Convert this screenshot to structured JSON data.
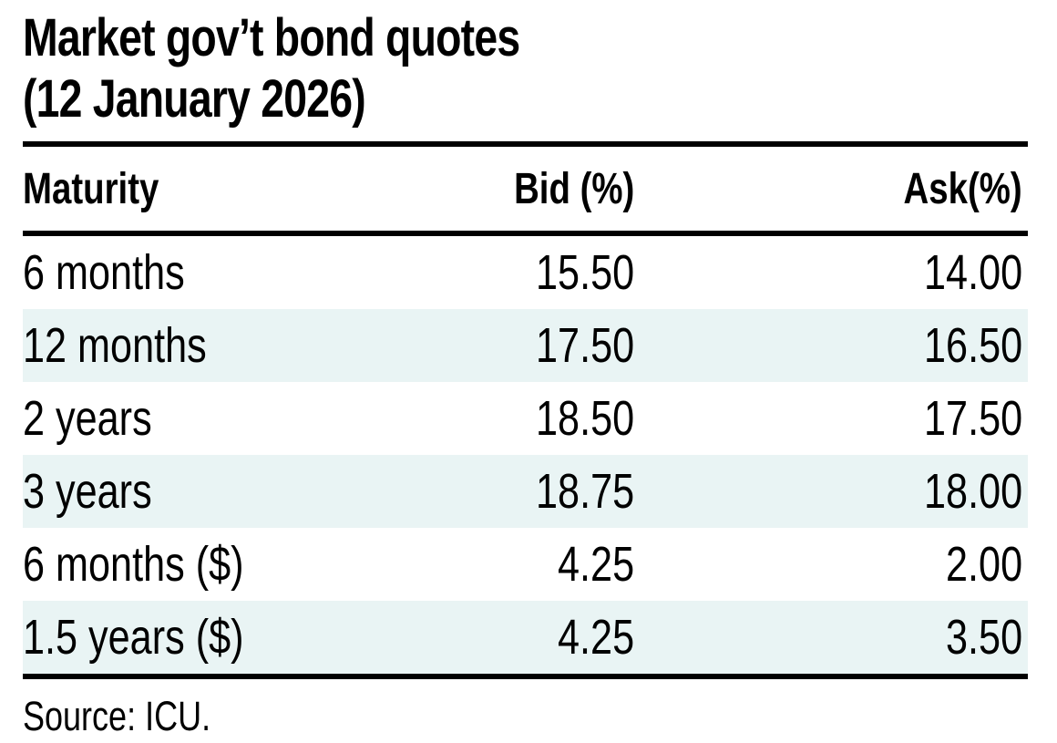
{
  "title": {
    "line1": "Market gov’t bond quotes",
    "line2": "(12 January 2026)"
  },
  "chart_data": {
    "type": "table",
    "title": "Market gov’t bond quotes (12 January 2026)",
    "columns": [
      "Maturity",
      "Bid (%)",
      "Ask(%)"
    ],
    "rows": [
      {
        "maturity": "6 months",
        "bid": "15.50",
        "ask": "14.00"
      },
      {
        "maturity": "12 months",
        "bid": "17.50",
        "ask": "16.50"
      },
      {
        "maturity": "2 years",
        "bid": "18.50",
        "ask": "17.50"
      },
      {
        "maturity": "3 years",
        "bid": "18.75",
        "ask": "18.00"
      },
      {
        "maturity": "6 months ($)",
        "bid": "4.25",
        "ask": "2.00"
      },
      {
        "maturity": "1.5 years ($)",
        "bid": "4.25",
        "ask": "3.50"
      }
    ],
    "bid_values": [
      15.5,
      17.5,
      18.5,
      18.75,
      4.25,
      4.25
    ],
    "ask_values": [
      14.0,
      16.5,
      17.5,
      18.0,
      2.0,
      3.5
    ],
    "source": "Source: ICU.",
    "layout": {
      "stripe_color": "#e9f4f4",
      "rule_color": "#000000",
      "text_color": "#000000",
      "striped_row_indexes": [
        1,
        3,
        5
      ]
    }
  }
}
